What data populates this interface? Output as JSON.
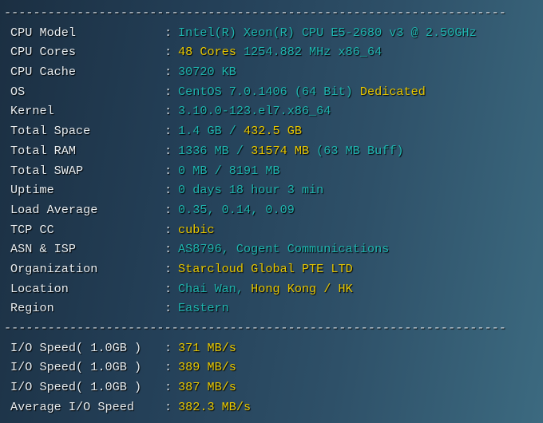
{
  "separator": "---------------------------------------------------------------------",
  "colors": {
    "cyan": "#1fb5b0",
    "yellow": "#e8c800",
    "label": "#e8eef2"
  },
  "info_rows": [
    {
      "label": "CPU Model",
      "parts": [
        {
          "text": "Intel(R) Xeon(R) CPU E5-2680 v3 @ 2.50GHz",
          "color": "c"
        }
      ]
    },
    {
      "label": "CPU Cores",
      "parts": [
        {
          "text": "48 Cores",
          "color": "y"
        },
        {
          "text": " 1254.882 MHz x86_64",
          "color": "c"
        }
      ]
    },
    {
      "label": "CPU Cache",
      "parts": [
        {
          "text": "30720 KB",
          "color": "c"
        }
      ]
    },
    {
      "label": "OS",
      "parts": [
        {
          "text": "CentOS 7.0.1406 (64 Bit)",
          "color": "c"
        },
        {
          "text": " Dedicated",
          "color": "y"
        }
      ]
    },
    {
      "label": "Kernel",
      "parts": [
        {
          "text": "3.10.0-123.el7.x86_64",
          "color": "c"
        }
      ]
    },
    {
      "label": "Total Space",
      "parts": [
        {
          "text": "1.4 GB / ",
          "color": "c"
        },
        {
          "text": "432.5 GB",
          "color": "y"
        }
      ]
    },
    {
      "label": "Total RAM",
      "parts": [
        {
          "text": "1336 MB / ",
          "color": "c"
        },
        {
          "text": "31574 MB",
          "color": "y"
        },
        {
          "text": " (63 MB Buff)",
          "color": "c"
        }
      ]
    },
    {
      "label": "Total SWAP",
      "parts": [
        {
          "text": "0 MB / 8191 MB",
          "color": "c"
        }
      ]
    },
    {
      "label": "Uptime",
      "parts": [
        {
          "text": "0 days 18 hour 3 min",
          "color": "c"
        }
      ]
    },
    {
      "label": "Load Average",
      "parts": [
        {
          "text": "0.35, 0.14, 0.09",
          "color": "c"
        }
      ]
    },
    {
      "label": "TCP CC",
      "parts": [
        {
          "text": "cubic",
          "color": "y"
        }
      ]
    },
    {
      "label": "ASN & ISP",
      "parts": [
        {
          "text": "AS8796, Cogent Communications",
          "color": "c"
        }
      ]
    },
    {
      "label": "Organization",
      "parts": [
        {
          "text": "Starcloud Global PTE LTD",
          "color": "y"
        }
      ]
    },
    {
      "label": "Location",
      "parts": [
        {
          "text": "Chai Wan, ",
          "color": "c"
        },
        {
          "text": "Hong Kong / HK",
          "color": "y"
        }
      ]
    },
    {
      "label": "Region",
      "parts": [
        {
          "text": "Eastern",
          "color": "c"
        }
      ]
    }
  ],
  "io_rows": [
    {
      "label": "I/O Speed( 1.0GB )",
      "parts": [
        {
          "text": "371 MB/s",
          "color": "y"
        }
      ]
    },
    {
      "label": "I/O Speed( 1.0GB )",
      "parts": [
        {
          "text": "389 MB/s",
          "color": "y"
        }
      ]
    },
    {
      "label": "I/O Speed( 1.0GB )",
      "parts": [
        {
          "text": "387 MB/s",
          "color": "y"
        }
      ]
    },
    {
      "label": "Average I/O Speed",
      "parts": [
        {
          "text": "382.3 MB/s",
          "color": "y"
        }
      ]
    }
  ],
  "colon": ":"
}
